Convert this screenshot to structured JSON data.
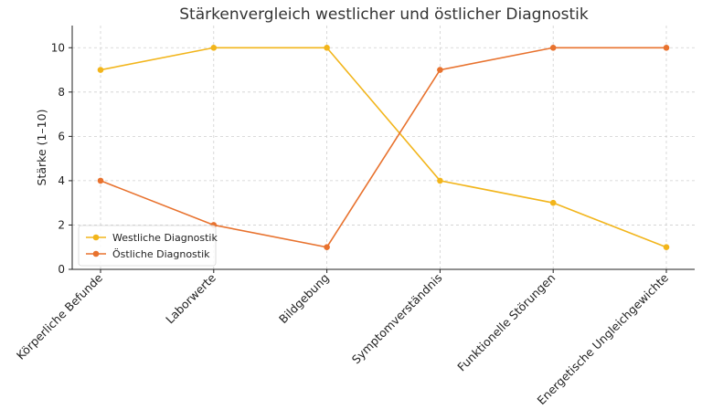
{
  "chart_data": {
    "type": "line",
    "title": "Stärkenvergleich westlicher und östlicher Diagnostik",
    "xlabel": "",
    "ylabel": "Stärke (1–10)",
    "ylim": [
      0,
      11
    ],
    "yticks": [
      0,
      2,
      4,
      6,
      8,
      10
    ],
    "grid": true,
    "legend_position": "lower-left",
    "categories": [
      "Körperliche Befunde",
      "Laborwerte",
      "Bildgebung",
      "Symptomverständnis",
      "Funktionelle Störungen",
      "Energetische Ungleichgewichte"
    ],
    "series": [
      {
        "name": "Westliche Diagnostik",
        "color": "#f2b51b",
        "values": [
          9,
          10,
          10,
          4,
          3,
          1
        ]
      },
      {
        "name": "Östliche Diagnostik",
        "color": "#e8722e",
        "values": [
          4,
          2,
          1,
          9,
          10,
          10
        ]
      }
    ]
  }
}
